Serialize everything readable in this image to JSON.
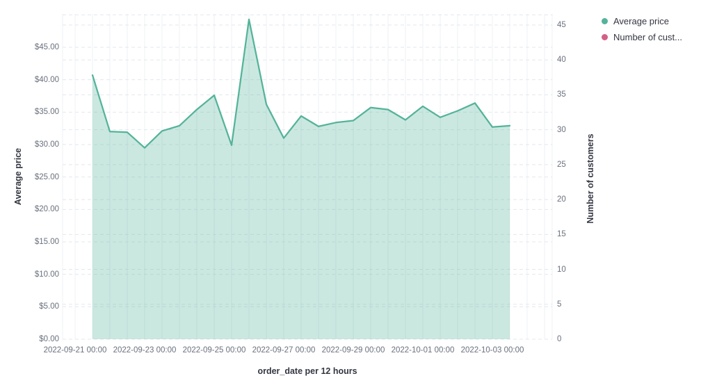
{
  "chart_data": {
    "type": "area",
    "title": "",
    "x_axis": {
      "title": "order_date per 12 hours",
      "tick_labels": [
        "2022-09-21 00:00",
        "2022-09-23 00:00",
        "2022-09-25 00:00",
        "2022-09-27 00:00",
        "2022-09-29 00:00",
        "2022-10-01 00:00",
        "2022-10-03 00:00"
      ]
    },
    "left_axis": {
      "title": "Average price",
      "tick_labels": [
        "$0.00",
        "$5.00",
        "$10.00",
        "$15.00",
        "$20.00",
        "$25.00",
        "$30.00",
        "$35.00",
        "$40.00",
        "$45.00"
      ],
      "tick_values": [
        0,
        5,
        10,
        15,
        20,
        25,
        30,
        35,
        40,
        45
      ],
      "grid_max": 50,
      "range": [
        0,
        50.25
      ]
    },
    "right_axis": {
      "title": "Number of customers",
      "tick_labels": [
        "0",
        "5",
        "10",
        "15",
        "20",
        "25",
        "30",
        "35",
        "40",
        "45"
      ],
      "tick_values": [
        0,
        5,
        10,
        15,
        20,
        25,
        30,
        35,
        40,
        45
      ],
      "grid_max": 45,
      "range": [
        0,
        46.6
      ]
    },
    "series": [
      {
        "name": "Average price",
        "axis": "left",
        "color": "#54b399",
        "fill_opacity": 0.3,
        "x": [
          "2022-09-21 12:00",
          "2022-09-22 00:00",
          "2022-09-22 12:00",
          "2022-09-23 00:00",
          "2022-09-23 12:00",
          "2022-09-24 00:00",
          "2022-09-24 12:00",
          "2022-09-25 00:00",
          "2022-09-25 12:00",
          "2022-09-26 00:00",
          "2022-09-26 12:00",
          "2022-09-27 00:00",
          "2022-09-27 12:00",
          "2022-09-28 00:00",
          "2022-09-28 12:00",
          "2022-09-29 00:00",
          "2022-09-29 12:00",
          "2022-09-30 00:00",
          "2022-09-30 12:00",
          "2022-10-01 00:00",
          "2022-10-01 12:00",
          "2022-10-02 00:00",
          "2022-10-02 12:00",
          "2022-10-03 00:00",
          "2022-10-03 12:00"
        ],
        "values": [
          40.7,
          32.0,
          31.9,
          29.5,
          32.1,
          32.9,
          35.4,
          37.6,
          29.9,
          49.3,
          36.2,
          31.0,
          34.4,
          32.8,
          33.4,
          33.7,
          35.7,
          35.4,
          33.8,
          35.9,
          34.2,
          35.2,
          36.4,
          32.7,
          32.9
        ]
      },
      {
        "name": "Number of customers",
        "axis": "right",
        "color": "#d36086",
        "values": []
      }
    ],
    "legend": {
      "position": "top-right",
      "items": [
        {
          "label": "Average price",
          "color": "#54b399"
        },
        {
          "label": "Number of cust...",
          "color": "#d36086"
        }
      ]
    },
    "grid": {
      "horizontal": "dashed",
      "vertical": "solid"
    }
  },
  "colors": {
    "series_green": "#54b399",
    "series_pink": "#d36086",
    "grid_dashed": "#e3e7ee",
    "grid_vertical": "#edf0f4",
    "tick_text": "#69707d",
    "title_text": "#343741",
    "background": "#ffffff"
  }
}
